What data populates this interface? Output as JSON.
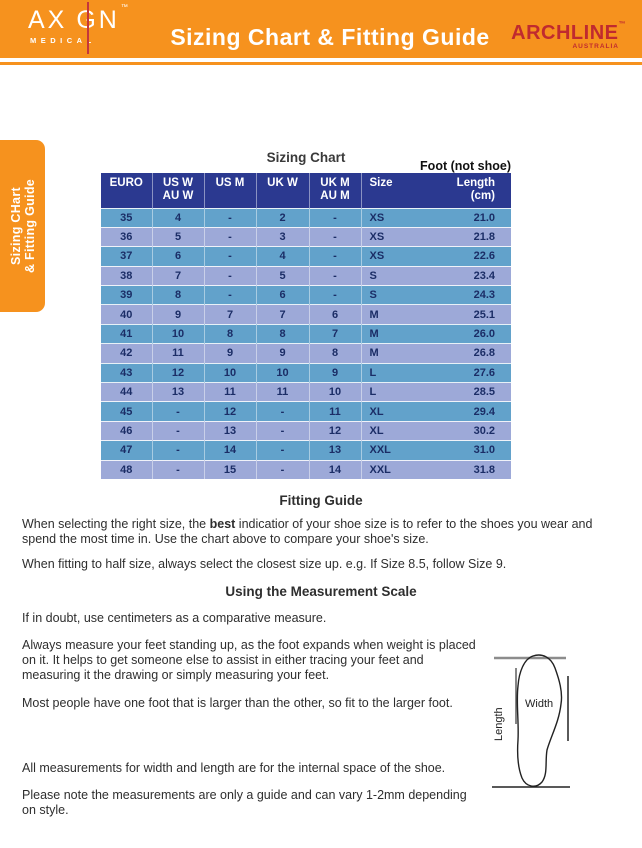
{
  "colors": {
    "orange": "#F6921E",
    "header_navy": "#2B3990",
    "row_blue": "#62A2CB",
    "row_periwinkle": "#9DA9D8",
    "brand_red": "#C02A2F",
    "cell_text_navy": "#1B2D66"
  },
  "header": {
    "brand_left": {
      "part1": "AX",
      "part2": "GN",
      "tm": "™",
      "sub": "MEDICAL"
    },
    "title": "Sizing Chart & Fitting Guide",
    "brand_right": {
      "name": "ARCHLINE",
      "tm": "™",
      "sub": "AUSTRALIA"
    }
  },
  "side_tab": {
    "line1": "Sizing CHart",
    "line2": "& Fitting Guide"
  },
  "chart": {
    "title": "Sizing Chart",
    "foot_note": "Foot (not shoe)",
    "columns": [
      {
        "l1": "EURO",
        "l2": ""
      },
      {
        "l1": "US W",
        "l2": "AU W"
      },
      {
        "l1": "US M",
        "l2": ""
      },
      {
        "l1": "UK W",
        "l2": ""
      },
      {
        "l1": "UK M",
        "l2": "AU M"
      },
      {
        "l1": "Size",
        "l2": ""
      },
      {
        "l1": "Length",
        "l2": "(cm)"
      }
    ],
    "rows": [
      [
        "35",
        "4",
        "-",
        "2",
        "-",
        "XS",
        "21.0"
      ],
      [
        "36",
        "5",
        "-",
        "3",
        "-",
        "XS",
        "21.8"
      ],
      [
        "37",
        "6",
        "-",
        "4",
        "-",
        "XS",
        "22.6"
      ],
      [
        "38",
        "7",
        "-",
        "5",
        "-",
        "S",
        "23.4"
      ],
      [
        "39",
        "8",
        "-",
        "6",
        "-",
        "S",
        "24.3"
      ],
      [
        "40",
        "9",
        "7",
        "7",
        "6",
        "M",
        "25.1"
      ],
      [
        "41",
        "10",
        "8",
        "8",
        "7",
        "M",
        "26.0"
      ],
      [
        "42",
        "11",
        "9",
        "9",
        "8",
        "M",
        "26.8"
      ],
      [
        "43",
        "12",
        "10",
        "10",
        "9",
        "L",
        "27.6"
      ],
      [
        "44",
        "13",
        "11",
        "11",
        "10",
        "L",
        "28.5"
      ],
      [
        "45",
        "-",
        "12",
        "-",
        "11",
        "XL",
        "29.4"
      ],
      [
        "46",
        "-",
        "13",
        "-",
        "12",
        "XL",
        "30.2"
      ],
      [
        "47",
        "-",
        "14",
        "-",
        "13",
        "XXL",
        "31.0"
      ],
      [
        "48",
        "-",
        "15",
        "-",
        "14",
        "XXL",
        "31.8"
      ]
    ]
  },
  "fitting": {
    "title": "Fitting Guide",
    "p1_pre": "When selecting the right size, the ",
    "p1_bold": "best",
    "p1_post": " indicatior of your shoe size is to refer to the shoes you wear and spend the most time in. Use the chart above to compare your shoe's size.",
    "p2": "When fitting to half size, always select the closest size up. e.g. If Size 8.5, follow Size 9."
  },
  "measurement": {
    "title": "Using the Measurement Scale",
    "p1": "If in doubt, use centimeters as a comparative measure.",
    "p2": "Always measure your feet standing up, as the foot expands when weight is placed on it. It helps to get someone else to assist in either tracing your feet and measuring it the drawing or simply measuring your feet.",
    "p3": "Most people have one foot that is larger than the other, so fit to the larger foot.",
    "p4": "All measurements for width and length are for the internal space of the shoe.",
    "p5": "Please note the measurements are only a guide and can vary 1-2mm depending on style."
  },
  "diagram": {
    "width_label": "Width",
    "length_label": "Length"
  }
}
